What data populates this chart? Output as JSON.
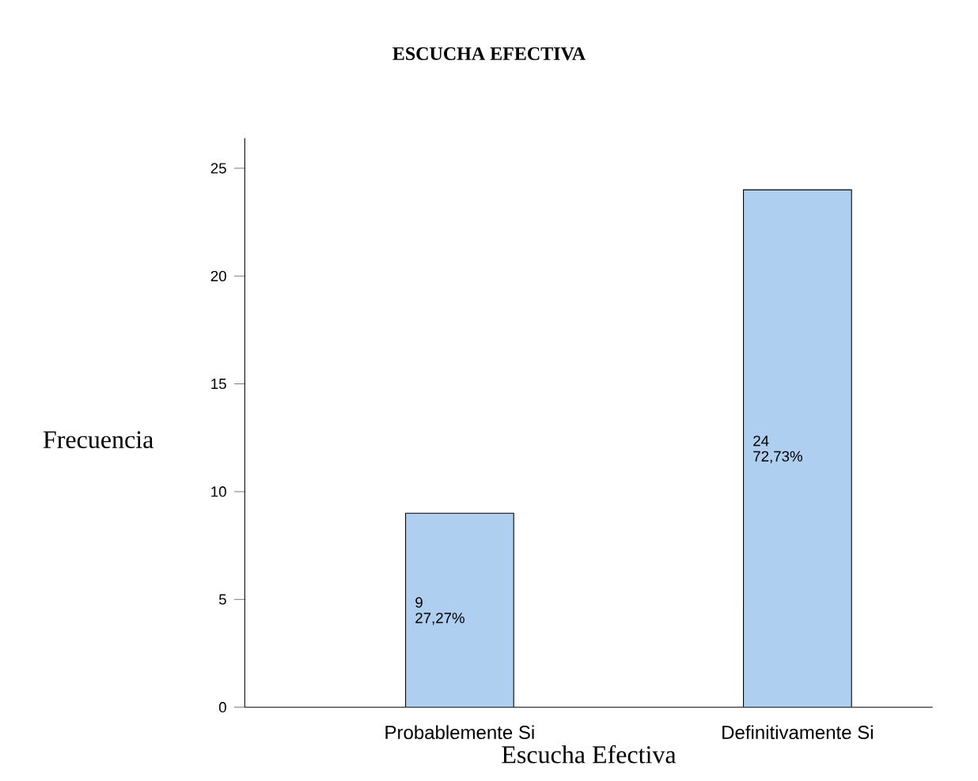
{
  "chart_data": {
    "type": "bar",
    "title": "ESCUCHA EFECTIVA",
    "xlabel": "Escucha Efectiva",
    "ylabel": "Frecuencia",
    "categories": [
      "Probablemente Si",
      "Definitivamente Si"
    ],
    "values": [
      9,
      24
    ],
    "color": "#aecfef",
    "value_labels": [
      "9",
      "24"
    ],
    "annotations": [
      "27,27%",
      "72,73%"
    ],
    "ylim": [
      0,
      26.4
    ],
    "yticks": [
      0,
      5,
      10,
      15,
      20,
      25
    ],
    "grid": false
  }
}
